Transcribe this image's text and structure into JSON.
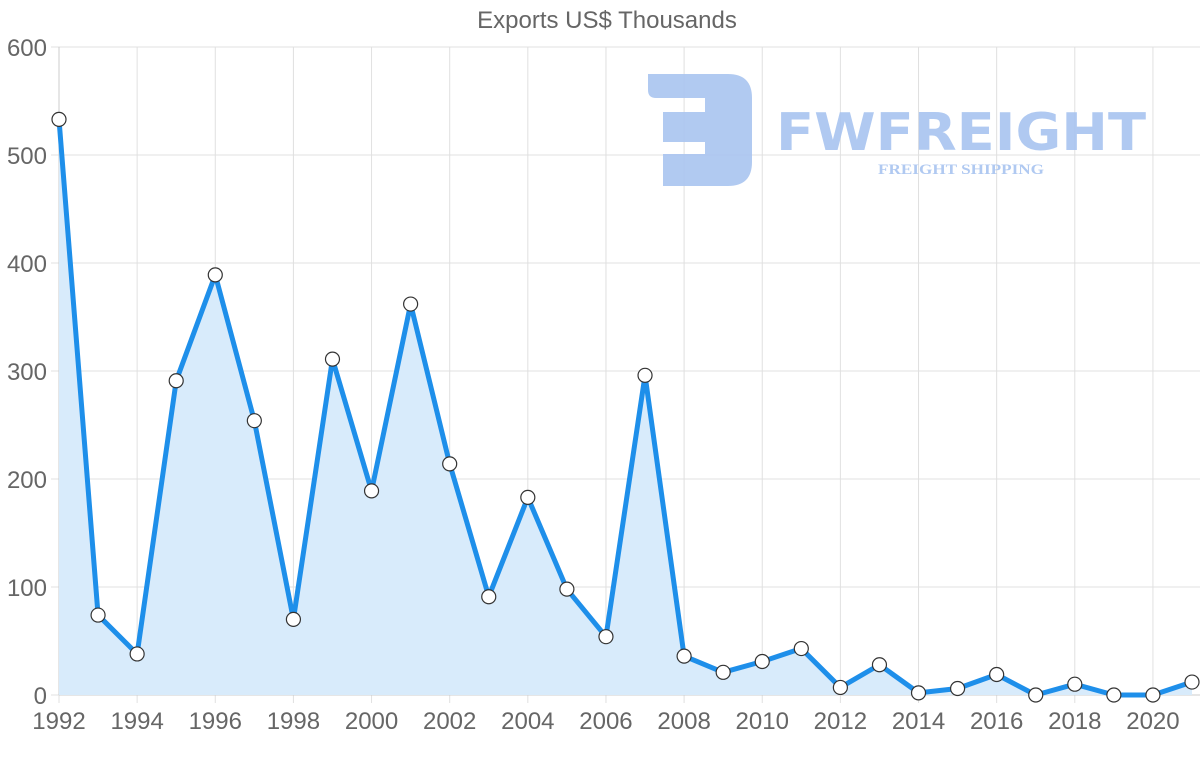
{
  "chart_data": {
    "type": "line",
    "title": "Exports US$ Thousands",
    "xlabel": "",
    "ylabel": "",
    "x": [
      1992,
      1993,
      1994,
      1995,
      1996,
      1997,
      1998,
      1999,
      2000,
      2001,
      2002,
      2003,
      2004,
      2005,
      2006,
      2007,
      2008,
      2009,
      2010,
      2011,
      2012,
      2013,
      2014,
      2015,
      2016,
      2017,
      2018,
      2019,
      2020,
      2021
    ],
    "series": [
      {
        "name": "Exports US$ Thousands",
        "values": [
          533,
          74,
          38,
          291,
          389,
          254,
          70,
          311,
          189,
          362,
          214,
          91,
          183,
          98,
          54,
          296,
          36,
          21,
          31,
          43,
          7,
          28,
          2,
          6,
          19,
          0,
          10,
          0,
          0,
          12
        ],
        "color": "#1e8fea",
        "fill": "#d8ebfb"
      }
    ],
    "x_tick_labels": [
      "1992",
      "1994",
      "1996",
      "1998",
      "2000",
      "2002",
      "2004",
      "2006",
      "2008",
      "2010",
      "2012",
      "2014",
      "2016",
      "2018",
      "2020"
    ],
    "y_tick_labels": [
      "0",
      "100",
      "200",
      "300",
      "400",
      "500",
      "600"
    ],
    "ylim": [
      0,
      600
    ],
    "grid": true,
    "legend": "none"
  },
  "watermark": {
    "brand": "FWFREIGHT",
    "tagline": "FREIGHT SHIPPING",
    "color": "#a8c4f0"
  }
}
